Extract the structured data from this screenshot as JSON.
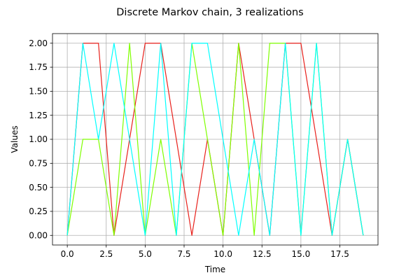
{
  "chart_data": {
    "type": "line",
    "title": "Discrete Markov chain, 3 realizations",
    "xlabel": "Time",
    "ylabel": "Values",
    "xlim": [
      -0.95,
      19.95
    ],
    "ylim": [
      -0.1,
      2.1
    ],
    "xticks": [
      0,
      2.5,
      5,
      7.5,
      10,
      12.5,
      15,
      17.5
    ],
    "xtick_labels": [
      "0.0",
      "2.5",
      "5.0",
      "7.5",
      "10.0",
      "12.5",
      "15.0",
      "17.5"
    ],
    "yticks": [
      0,
      0.25,
      0.5,
      0.75,
      1,
      1.25,
      1.5,
      1.75,
      2
    ],
    "ytick_labels": [
      "0.00",
      "0.25",
      "0.50",
      "0.75",
      "1.00",
      "1.25",
      "1.50",
      "1.75",
      "2.00"
    ],
    "grid": true,
    "x": [
      0,
      1,
      2,
      3,
      4,
      5,
      6,
      7,
      8,
      9,
      10,
      11,
      12,
      13,
      14,
      15,
      16,
      17,
      18,
      19
    ],
    "series": [
      {
        "color": "#e8211c",
        "values": [
          0,
          2,
          2,
          0,
          1,
          2,
          2,
          1,
          0,
          1,
          0,
          2,
          1,
          0,
          2,
          2,
          1,
          0,
          1,
          0
        ]
      },
      {
        "color": "#7fff00",
        "values": [
          0,
          1,
          1,
          0,
          2,
          0,
          1,
          0,
          2,
          1,
          0,
          2,
          0,
          2,
          2,
          0,
          2,
          0,
          1,
          0
        ]
      },
      {
        "color": "#00ffff",
        "values": [
          0,
          2,
          1,
          2,
          1,
          0,
          2,
          0,
          2,
          2,
          1,
          0,
          1,
          0,
          2,
          0,
          2,
          0,
          1,
          0
        ]
      }
    ]
  }
}
